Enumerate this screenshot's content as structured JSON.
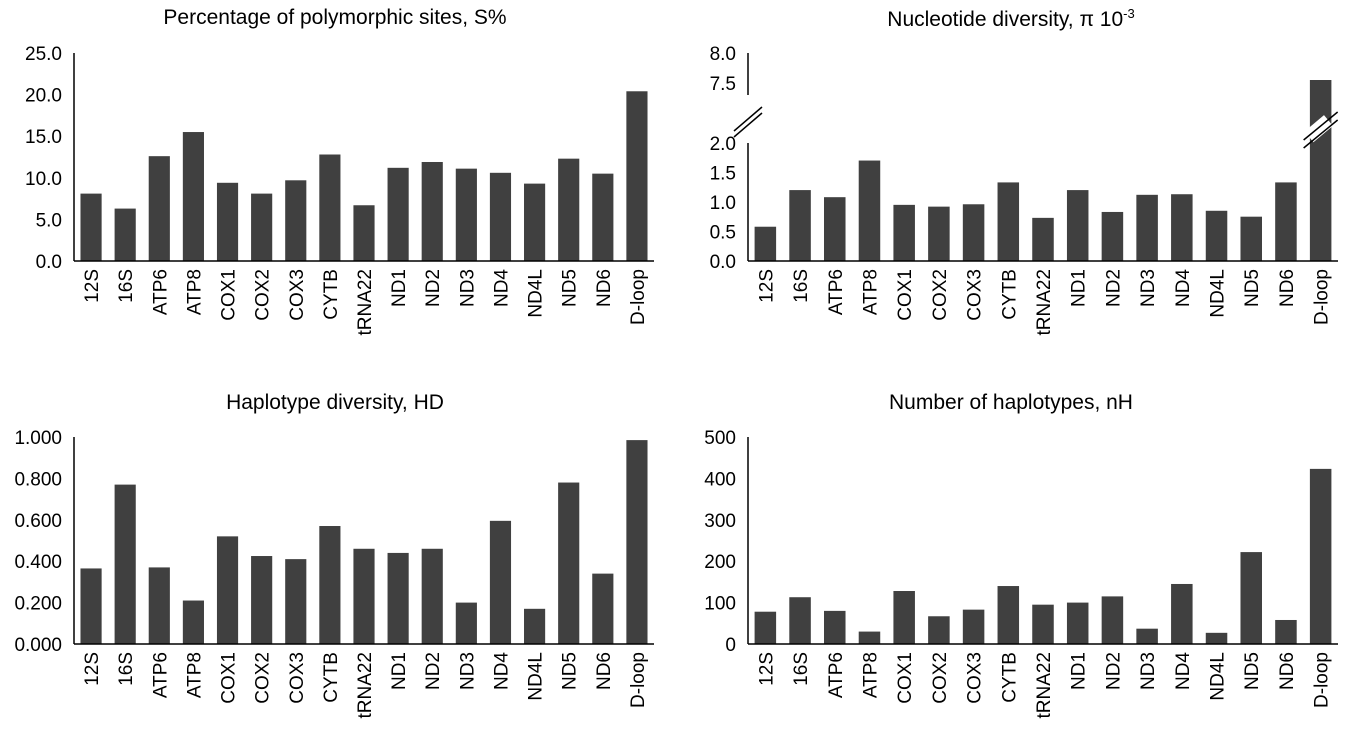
{
  "colors": {
    "bar": "#404040",
    "axis": "#000000",
    "background": "#ffffff"
  },
  "categories": [
    "12S",
    "16S",
    "ATP6",
    "ATP8",
    "COX1",
    "COX2",
    "COX3",
    "CYTB",
    "tRNA22",
    "ND1",
    "ND2",
    "ND3",
    "ND4",
    "ND4L",
    "ND5",
    "ND6",
    "D-loop"
  ],
  "chart_data": [
    {
      "type": "bar",
      "title": "Percentage of polymorphic sites, S%",
      "categories": [
        "12S",
        "16S",
        "ATP6",
        "ATP8",
        "COX1",
        "COX2",
        "COX3",
        "CYTB",
        "tRNA22",
        "ND1",
        "ND2",
        "ND3",
        "ND4",
        "ND4L",
        "ND5",
        "ND6",
        "D-loop"
      ],
      "values": [
        8.1,
        6.3,
        12.6,
        15.5,
        9.4,
        8.1,
        9.7,
        12.8,
        6.7,
        11.2,
        11.9,
        11.1,
        10.6,
        9.3,
        12.3,
        10.5,
        20.4
      ],
      "ylim": [
        0,
        25
      ],
      "yticks": [
        "0.0",
        "5.0",
        "10.0",
        "15.0",
        "20.0",
        "25.0"
      ],
      "ytick_values": [
        0,
        5,
        10,
        15,
        20,
        25
      ],
      "grid": false,
      "legend": "none"
    },
    {
      "type": "bar",
      "title": "Nucleotide diversity, π 10",
      "title_superscript": "-3",
      "categories": [
        "12S",
        "16S",
        "ATP6",
        "ATP8",
        "COX1",
        "COX2",
        "COX3",
        "CYTB",
        "tRNA22",
        "ND1",
        "ND2",
        "ND3",
        "ND4",
        "ND4L",
        "ND5",
        "ND6",
        "D-loop"
      ],
      "values": [
        0.58,
        1.2,
        1.08,
        1.7,
        0.95,
        0.92,
        0.96,
        1.33,
        0.73,
        1.2,
        0.83,
        1.12,
        1.13,
        0.85,
        0.75,
        1.33,
        7.55
      ],
      "ylim": [
        0,
        8
      ],
      "axis_break": [
        2.2,
        7.1
      ],
      "yticks": [
        "0.0",
        "0.5",
        "1.0",
        "1.5",
        "2.0",
        "7.5",
        "8.0"
      ],
      "ytick_values": [
        0,
        0.5,
        1.0,
        1.5,
        2.0,
        7.5,
        8.0
      ],
      "grid": false,
      "legend": "none"
    },
    {
      "type": "bar",
      "title": "Haplotype diversity, HD",
      "categories": [
        "12S",
        "16S",
        "ATP6",
        "ATP8",
        "COX1",
        "COX2",
        "COX3",
        "CYTB",
        "tRNA22",
        "ND1",
        "ND2",
        "ND3",
        "ND4",
        "ND4L",
        "ND5",
        "ND6",
        "D-loop"
      ],
      "values": [
        0.365,
        0.77,
        0.37,
        0.21,
        0.52,
        0.425,
        0.41,
        0.57,
        0.46,
        0.44,
        0.46,
        0.2,
        0.595,
        0.17,
        0.78,
        0.34,
        0.985
      ],
      "ylim": [
        0,
        1
      ],
      "yticks": [
        "0.000",
        "0.200",
        "0.400",
        "0.600",
        "0.800",
        "1.000"
      ],
      "ytick_values": [
        0,
        0.2,
        0.4,
        0.6,
        0.8,
        1.0
      ],
      "grid": false,
      "legend": "none"
    },
    {
      "type": "bar",
      "title": "Number of haplotypes, nH",
      "categories": [
        "12S",
        "16S",
        "ATP6",
        "ATP8",
        "COX1",
        "COX2",
        "COX3",
        "CYTB",
        "tRNA22",
        "ND1",
        "ND2",
        "ND3",
        "ND4",
        "ND4L",
        "ND5",
        "ND6",
        "D-loop"
      ],
      "values": [
        78,
        113,
        80,
        30,
        128,
        67,
        83,
        140,
        95,
        100,
        115,
        37,
        145,
        27,
        222,
        58,
        423
      ],
      "ylim": [
        0,
        500
      ],
      "yticks": [
        "0",
        "100",
        "200",
        "300",
        "400",
        "500"
      ],
      "ytick_values": [
        0,
        100,
        200,
        300,
        400,
        500
      ],
      "grid": false,
      "legend": "none"
    }
  ]
}
